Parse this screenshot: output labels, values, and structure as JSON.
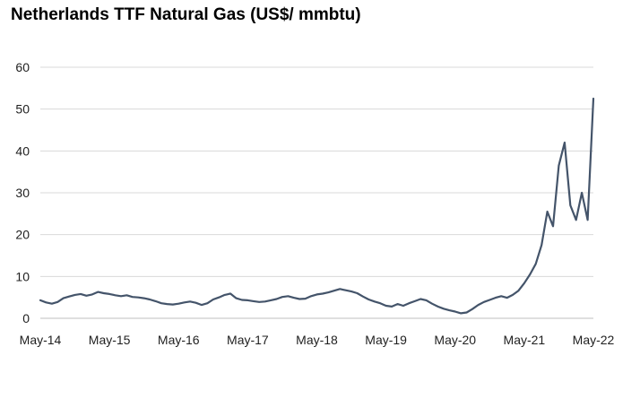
{
  "chart_data": {
    "type": "line",
    "title": "Netherlands TTF Natural Gas (US$/ mmbtu)",
    "xlabel": "",
    "ylabel": "",
    "ylim": [
      0,
      60
    ],
    "yticks": [
      0,
      10,
      20,
      30,
      40,
      50,
      60
    ],
    "xlim": [
      "2014-05",
      "2022-05"
    ],
    "xticks": [
      "May-14",
      "May-15",
      "May-16",
      "May-17",
      "May-18",
      "May-19",
      "May-20",
      "May-21",
      "May-22"
    ],
    "grid": true,
    "legend": "none",
    "line_color": "#44546a",
    "series": [
      {
        "x": [
          "2014-05",
          "2014-06",
          "2014-07",
          "2014-08",
          "2014-09",
          "2014-10",
          "2014-11",
          "2014-12",
          "2015-01",
          "2015-02",
          "2015-03",
          "2015-04",
          "2015-05",
          "2015-06",
          "2015-07",
          "2015-08",
          "2015-09",
          "2015-10",
          "2015-11",
          "2015-12",
          "2016-01",
          "2016-02",
          "2016-03",
          "2016-04",
          "2016-05",
          "2016-06",
          "2016-07",
          "2016-08",
          "2016-09",
          "2016-10",
          "2016-11",
          "2016-12",
          "2017-01",
          "2017-02",
          "2017-03",
          "2017-04",
          "2017-05",
          "2017-06",
          "2017-07",
          "2017-08",
          "2017-09",
          "2017-10",
          "2017-11",
          "2017-12",
          "2018-01",
          "2018-02",
          "2018-03",
          "2018-04",
          "2018-05",
          "2018-06",
          "2018-07",
          "2018-08",
          "2018-09",
          "2018-10",
          "2018-11",
          "2018-12",
          "2019-01",
          "2019-02",
          "2019-03",
          "2019-04",
          "2019-05",
          "2019-06",
          "2019-07",
          "2019-08",
          "2019-09",
          "2019-10",
          "2019-11",
          "2019-12",
          "2020-01",
          "2020-02",
          "2020-03",
          "2020-04",
          "2020-05",
          "2020-06",
          "2020-07",
          "2020-08",
          "2020-09",
          "2020-10",
          "2020-11",
          "2020-12",
          "2021-01",
          "2021-02",
          "2021-03",
          "2021-04",
          "2021-05",
          "2021-06",
          "2021-07",
          "2021-08",
          "2021-09",
          "2021-10",
          "2021-11",
          "2021-12",
          "2022-01",
          "2022-02",
          "2022-03",
          "2022-04",
          "2022-05"
        ],
        "values": [
          4.3,
          3.8,
          3.5,
          3.9,
          4.8,
          5.2,
          5.6,
          5.8,
          5.4,
          5.7,
          6.3,
          6.0,
          5.8,
          5.5,
          5.3,
          5.5,
          5.1,
          5.0,
          4.8,
          4.5,
          4.1,
          3.6,
          3.4,
          3.3,
          3.5,
          3.8,
          4.0,
          3.7,
          3.2,
          3.6,
          4.5,
          5.0,
          5.6,
          5.9,
          4.8,
          4.4,
          4.3,
          4.1,
          3.9,
          4.0,
          4.3,
          4.6,
          5.1,
          5.3,
          4.9,
          4.6,
          4.7,
          5.3,
          5.7,
          5.9,
          6.2,
          6.6,
          7.0,
          6.7,
          6.4,
          6.0,
          5.2,
          4.5,
          4.0,
          3.6,
          3.0,
          2.8,
          3.4,
          3.0,
          3.6,
          4.1,
          4.6,
          4.3,
          3.5,
          2.8,
          2.3,
          1.9,
          1.6,
          1.2,
          1.4,
          2.2,
          3.2,
          3.9,
          4.4,
          4.9,
          5.3,
          4.9,
          5.6,
          6.6,
          8.4,
          10.5,
          13.0,
          17.5,
          25.5,
          22.0,
          36.5,
          42.0,
          27.0,
          23.5,
          30.0,
          23.5,
          52.5
        ]
      }
    ]
  }
}
